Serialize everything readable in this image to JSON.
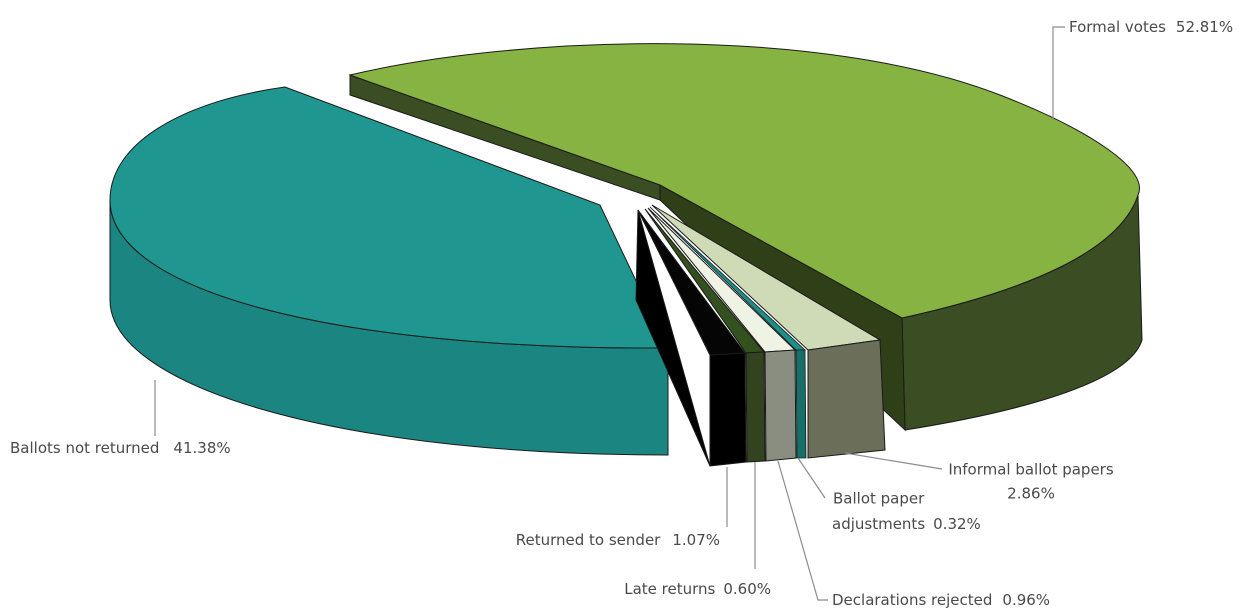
{
  "chart_data": {
    "type": "pie",
    "style": "3d-exploded",
    "title": "",
    "slices": [
      {
        "key": "formal",
        "label": "Formal votes",
        "value": 52.81,
        "value_text": "52.81%",
        "color": "#86b342"
      },
      {
        "key": "informal",
        "label": "Informal ballot papers",
        "value": 2.86,
        "value_text": "2.86%",
        "color": "#cfdab7"
      },
      {
        "key": "adjust",
        "label": "Ballot paper adjustments",
        "label_line1": "Ballot paper",
        "label_line2": "adjustments",
        "value": 0.32,
        "value_text": "0.32%",
        "color": "#1e8f88"
      },
      {
        "key": "declrej",
        "label": "Declarations rejected",
        "value": 0.96,
        "value_text": "0.96%",
        "color": "#eef3e3"
      },
      {
        "key": "late",
        "label": "Late returns",
        "value": 0.6,
        "value_text": "0.60%",
        "color": "#33511e"
      },
      {
        "key": "rts",
        "label": "Returned to sender",
        "value": 1.07,
        "value_text": "1.07%",
        "color": "#050505"
      },
      {
        "key": "notret",
        "label": "Ballots not returned",
        "value": 41.38,
        "value_text": "41.38%",
        "color": "#209690"
      }
    ]
  }
}
